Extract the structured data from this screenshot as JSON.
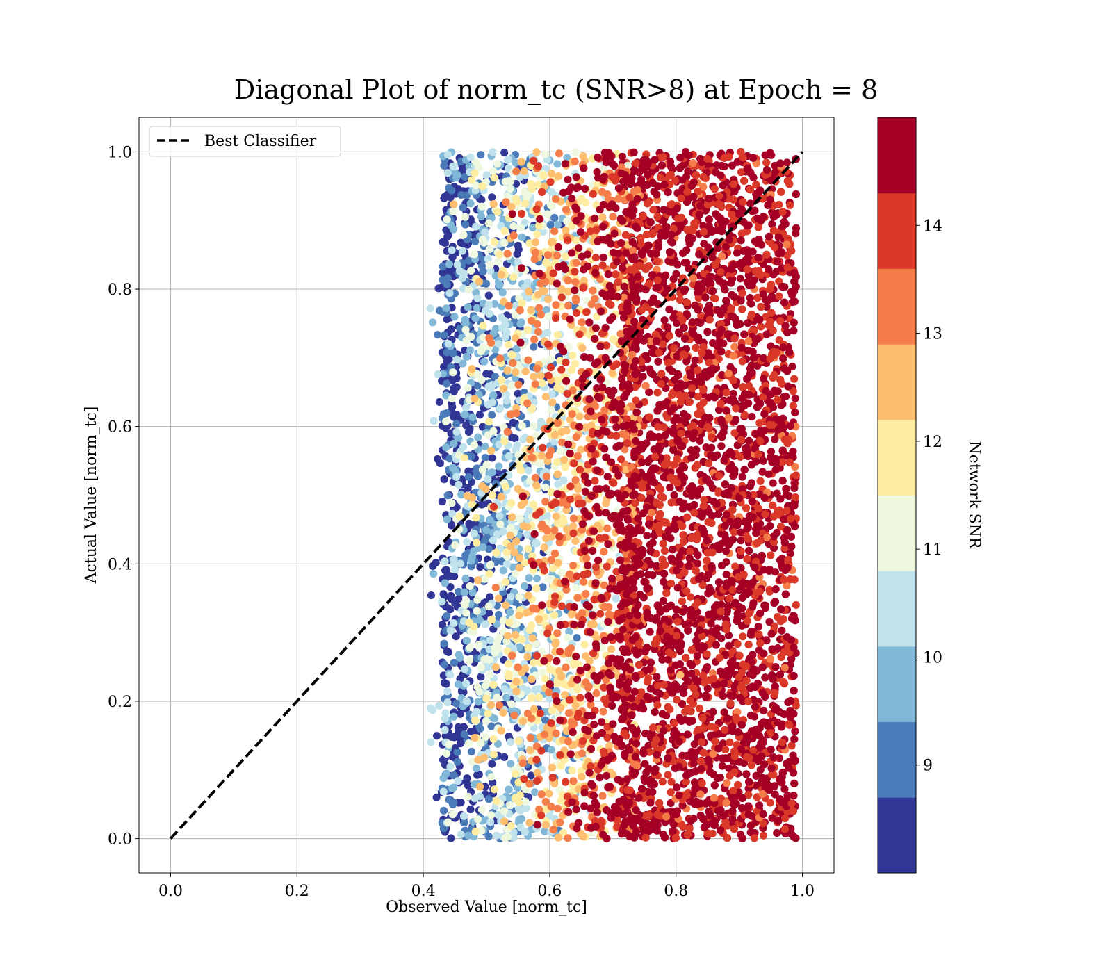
{
  "chart_data": {
    "type": "scatter",
    "title": "Diagonal Plot of norm_tc (SNR>8) at Epoch = 8",
    "xlabel": "Observed Value [norm_tc]",
    "ylabel": "Actual Value [norm_tc]",
    "xlim": [
      -0.05,
      1.05
    ],
    "ylim": [
      -0.05,
      1.05
    ],
    "xticks": [
      0.0,
      0.2,
      0.4,
      0.6,
      0.8,
      1.0
    ],
    "yticks": [
      0.0,
      0.2,
      0.4,
      0.6,
      0.8,
      1.0
    ],
    "xtick_labels": [
      "0.0",
      "0.2",
      "0.4",
      "0.6",
      "0.8",
      "1.0"
    ],
    "ytick_labels": [
      "0.0",
      "0.2",
      "0.4",
      "0.6",
      "0.8",
      "1.0"
    ],
    "grid": true,
    "legend": {
      "position": "top-left",
      "entries": [
        {
          "label": "Best Classifier",
          "style": "black dashed line"
        }
      ]
    },
    "reference_line": {
      "name": "Best Classifier",
      "x": [
        0.0,
        1.0
      ],
      "y": [
        0.0,
        1.0
      ],
      "color": "#000000",
      "dash": true
    },
    "scatter_summary": {
      "x_range": [
        0.41,
        0.99
      ],
      "y_range": [
        0.0,
        1.0
      ],
      "color_by": "Network SNR",
      "trend": "SNR increases with observed value; points with x above 0.72 are almost all SNR 14+"
    },
    "colorbar": {
      "label": "Network SNR",
      "range": [
        8,
        15
      ],
      "tick_values": [
        9,
        10,
        11,
        12,
        13,
        14
      ],
      "tick_labels": [
        "9",
        "10",
        "11",
        "12",
        "13",
        "14"
      ],
      "bins": [
        {
          "from": 8.0,
          "to": 8.7,
          "color": "#313695"
        },
        {
          "from": 8.7,
          "to": 9.4,
          "color": "#4a7ab7"
        },
        {
          "from": 9.4,
          "to": 10.1,
          "color": "#82b8d7"
        },
        {
          "from": 10.1,
          "to": 10.8,
          "color": "#c0e2ec"
        },
        {
          "from": 10.8,
          "to": 11.5,
          "color": "#eef8df"
        },
        {
          "from": 11.5,
          "to": 12.2,
          "color": "#feeda1"
        },
        {
          "from": 12.2,
          "to": 12.9,
          "color": "#fdbe70"
        },
        {
          "from": 12.9,
          "to": 13.6,
          "color": "#f57d4a"
        },
        {
          "from": 13.6,
          "to": 14.3,
          "color": "#da3828"
        },
        {
          "from": 14.3,
          "to": 15.0,
          "color": "#a50026"
        }
      ]
    }
  }
}
